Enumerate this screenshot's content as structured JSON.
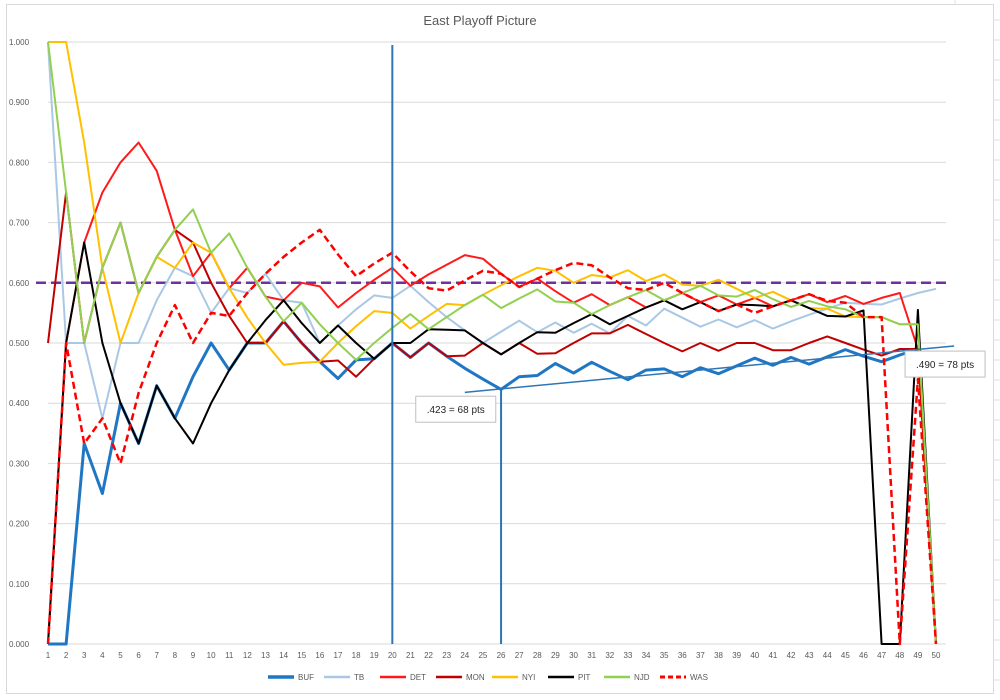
{
  "chart_data": {
    "type": "line",
    "title": "East Playoff Picture",
    "xlabel": "",
    "ylabel": "",
    "ylim": [
      0,
      1
    ],
    "yticks": [
      "0.000",
      "0.100",
      "0.200",
      "0.300",
      "0.400",
      "0.500",
      "0.600",
      "0.700",
      "0.800",
      "0.900",
      "1.000"
    ],
    "x": [
      1,
      2,
      3,
      4,
      5,
      6,
      7,
      8,
      9,
      10,
      11,
      12,
      13,
      14,
      15,
      16,
      17,
      18,
      19,
      20,
      21,
      22,
      23,
      24,
      25,
      26,
      27,
      28,
      29,
      30,
      31,
      32,
      33,
      34,
      35,
      36,
      37,
      38,
      39,
      40,
      41,
      42,
      43,
      44,
      45,
      46,
      47,
      48,
      49,
      50
    ],
    "grid": "horizontal",
    "legend_position": "bottom",
    "series": [
      {
        "name": "BUF",
        "color": "#1f77c4",
        "width": 3,
        "dash": "",
        "values": [
          0,
          0,
          0.333,
          0.25,
          0.4,
          0.333,
          0.429,
          0.375,
          0.444,
          0.5,
          0.455,
          0.5,
          0.5,
          0.536,
          0.5,
          0.469,
          0.441,
          0.472,
          0.474,
          0.5,
          0.476,
          0.5,
          0.478,
          0.458,
          0.44,
          0.423,
          0.444,
          0.446,
          0.466,
          0.45,
          0.468,
          0.453,
          0.439,
          0.455,
          0.457,
          0.444,
          0.459,
          0.449,
          0.462,
          0.475,
          0.463,
          0.476,
          0.465,
          0.477,
          0.489,
          0.478,
          0.469,
          0.48,
          0.49,
          null
        ]
      },
      {
        "name": "TB",
        "color": "#a9c8e5",
        "width": 2,
        "dash": "",
        "values": [
          1,
          0.5,
          0.5,
          0.375,
          0.5,
          0.5,
          0.571,
          0.625,
          0.611,
          0.55,
          0.591,
          0.583,
          0.615,
          0.571,
          0.567,
          0.5,
          0.529,
          0.556,
          0.579,
          0.575,
          0.595,
          0.568,
          0.543,
          0.521,
          0.5,
          0.519,
          0.537,
          0.518,
          0.534,
          0.517,
          0.532,
          0.516,
          0.545,
          0.529,
          0.557,
          0.542,
          0.527,
          0.539,
          0.526,
          0.538,
          0.524,
          0.536,
          0.547,
          0.557,
          0.567,
          0.565,
          0.564,
          0.574,
          0.583,
          0.59
        ]
      },
      {
        "name": "DET",
        "color": "#ff1a1a",
        "width": 2,
        "dash": "",
        "values": [
          0,
          0.5,
          0.667,
          0.75,
          0.8,
          0.833,
          0.786,
          0.688,
          0.611,
          0.65,
          0.591,
          0.625,
          0.577,
          0.571,
          0.6,
          0.594,
          0.559,
          0.583,
          0.605,
          0.625,
          0.595,
          0.614,
          0.63,
          0.646,
          0.64,
          0.615,
          0.593,
          0.607,
          0.586,
          0.567,
          0.581,
          0.563,
          0.576,
          0.559,
          0.571,
          0.583,
          0.568,
          0.579,
          0.564,
          0.575,
          0.561,
          0.571,
          0.581,
          0.568,
          0.578,
          0.565,
          0.575,
          0.583,
          0.49,
          0
        ]
      },
      {
        "name": "MON",
        "color": "#c00000",
        "width": 2,
        "dash": "",
        "values": [
          0.5,
          0.75,
          0.5,
          0.625,
          0.7,
          0.583,
          0.643,
          0.688,
          0.667,
          0.6,
          0.545,
          0.5,
          0.5,
          0.536,
          0.5,
          0.469,
          0.471,
          0.444,
          0.474,
          0.5,
          0.476,
          0.5,
          0.478,
          0.479,
          0.5,
          0.481,
          0.5,
          0.482,
          0.483,
          0.5,
          0.516,
          0.516,
          0.53,
          0.515,
          0.5,
          0.486,
          0.5,
          0.487,
          0.5,
          0.5,
          0.488,
          0.488,
          0.5,
          0.511,
          0.5,
          0.489,
          0.479,
          0.49,
          0.49,
          0
        ]
      },
      {
        "name": "NYI",
        "color": "#ffc000",
        "width": 2,
        "dash": "",
        "values": [
          1,
          1,
          0.833,
          0.625,
          0.5,
          0.583,
          0.643,
          0.625,
          0.667,
          0.65,
          0.591,
          0.542,
          0.5,
          0.464,
          0.467,
          0.469,
          0.5,
          0.528,
          0.553,
          0.55,
          0.524,
          0.545,
          0.565,
          0.563,
          0.58,
          0.596,
          0.611,
          0.625,
          0.62,
          0.6,
          0.613,
          0.609,
          0.621,
          0.603,
          0.614,
          0.597,
          0.595,
          0.605,
          0.59,
          0.575,
          0.585,
          0.571,
          0.558,
          0.557,
          0.544,
          0.543,
          0.543,
          0.531,
          0.531,
          0
        ]
      },
      {
        "name": "PIT",
        "color": "#000000",
        "width": 2,
        "dash": "",
        "values": [
          0,
          0.5,
          0.667,
          0.5,
          0.4,
          0.333,
          0.429,
          0.375,
          0.333,
          0.4,
          0.455,
          0.5,
          0.538,
          0.571,
          0.533,
          0.5,
          0.529,
          0.5,
          0.474,
          0.5,
          0.5,
          0.523,
          0.522,
          0.521,
          0.5,
          0.481,
          0.5,
          0.518,
          0.517,
          0.533,
          0.548,
          0.531,
          0.545,
          0.559,
          0.571,
          0.556,
          0.568,
          0.553,
          0.564,
          0.563,
          0.561,
          0.571,
          0.558,
          0.545,
          0.544,
          0.554,
          0,
          0,
          0.555,
          0
        ]
      },
      {
        "name": "NJD",
        "color": "#92d050",
        "width": 2,
        "dash": "",
        "values": [
          1,
          0.75,
          0.5,
          0.625,
          0.7,
          0.583,
          0.643,
          0.688,
          0.722,
          0.65,
          0.682,
          0.625,
          0.577,
          0.536,
          0.567,
          0.531,
          0.5,
          0.472,
          0.5,
          0.525,
          0.548,
          0.523,
          0.543,
          0.563,
          0.58,
          0.558,
          0.574,
          0.589,
          0.569,
          0.567,
          0.548,
          0.563,
          0.576,
          0.588,
          0.571,
          0.583,
          0.595,
          0.579,
          0.577,
          0.588,
          0.573,
          0.56,
          0.57,
          0.561,
          0.556,
          0.543,
          0.543,
          0.531,
          0.531,
          0
        ]
      },
      {
        "name": "WAS",
        "color": "#ff0000",
        "width": 2.5,
        "dash": "7,4",
        "values": [
          0,
          0.5,
          0.333,
          0.375,
          0.3,
          0.417,
          0.5,
          0.563,
          0.5,
          0.55,
          0.545,
          0.583,
          0.615,
          0.643,
          0.667,
          0.688,
          0.647,
          0.611,
          0.632,
          0.65,
          0.619,
          0.591,
          0.587,
          0.604,
          0.62,
          0.615,
          0.593,
          0.607,
          0.621,
          0.633,
          0.629,
          0.609,
          0.591,
          0.588,
          0.6,
          0.583,
          0.568,
          0.553,
          0.564,
          0.55,
          0.561,
          0.571,
          0.581,
          0.57,
          0.567,
          0.543,
          0.543,
          0,
          0.44,
          0
        ]
      }
    ],
    "reference_line": {
      "y": 0.6,
      "color": "#7030a0",
      "dash": "10,5"
    },
    "vertical_markers": [
      {
        "x": 20,
        "color": "#2e75b6",
        "from": 0,
        "to": 0.995
      },
      {
        "x": 26,
        "color": "#2e75b6",
        "from": 0,
        "to": 0.423
      }
    ],
    "trendline": {
      "x1": 24,
      "y1": 0.418,
      "x2": 51,
      "y2": 0.495,
      "color": "#2e75b6"
    },
    "annotations": [
      {
        "text": ".423 = 68 pts",
        "x": 23.5,
        "y": 0.39
      },
      {
        "text": ".490 = 78 pts",
        "x": 50.5,
        "y": 0.465
      }
    ]
  }
}
